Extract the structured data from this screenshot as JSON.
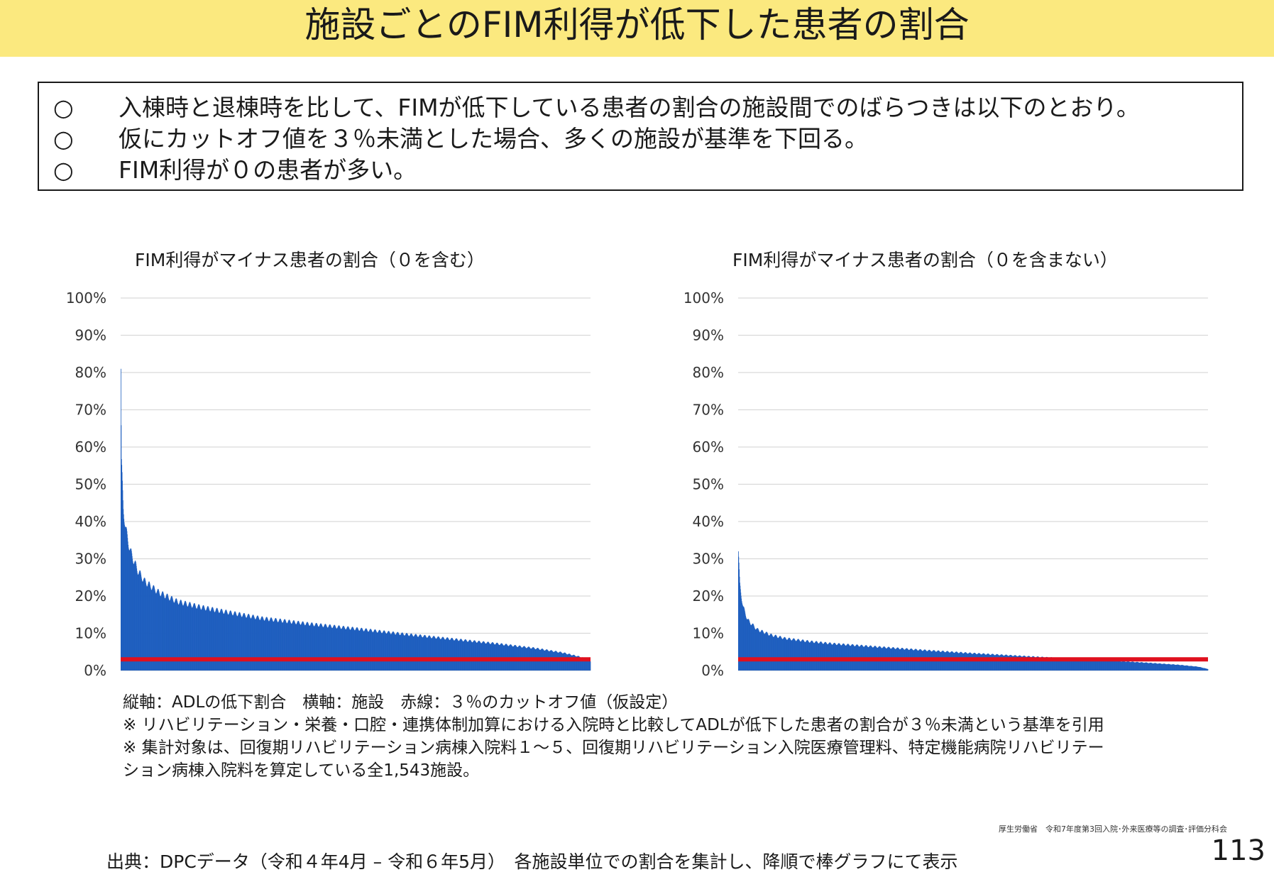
{
  "header": {
    "title": "施設ごとのFIM利得が低下した患者の割合"
  },
  "summary": {
    "bullets": [
      {
        "mark": "○",
        "text": "入棟時と退棟時を比して、FIMが低下している患者の割合の施設間でのばらつきは以下のとおり。"
      },
      {
        "mark": "○",
        "text": "仮にカットオフ値を３％未満とした場合、多くの施設が基準を下回る。"
      },
      {
        "mark": "○",
        "text": "FIM利得が０の患者が多い。"
      }
    ]
  },
  "colors": {
    "bar": "#1f5fbf",
    "cutoff_line": "#e0101e",
    "grid": "#d9d9d9",
    "title_bar": "#fbe97f"
  },
  "chart_data": [
    {
      "type": "bar",
      "title": "FIM利得がマイナス患者の割合（０を含む）",
      "x_count": 1543,
      "y_ticks": [
        "0%",
        "10%",
        "20%",
        "30%",
        "40%",
        "50%",
        "60%",
        "70%",
        "80%",
        "90%",
        "100%"
      ],
      "ylim": [
        0,
        100
      ],
      "cutoff": 3,
      "sorted": "descending",
      "profile": [
        [
          0.0,
          81
        ],
        [
          0.001,
          56
        ],
        [
          0.005,
          44
        ],
        [
          0.01,
          38
        ],
        [
          0.02,
          32
        ],
        [
          0.035,
          27
        ],
        [
          0.05,
          24
        ],
        [
          0.08,
          21
        ],
        [
          0.12,
          18.5
        ],
        [
          0.17,
          17
        ],
        [
          0.22,
          15.8
        ],
        [
          0.3,
          14
        ],
        [
          0.4,
          12.5
        ],
        [
          0.5,
          11.2
        ],
        [
          0.6,
          9.8
        ],
        [
          0.7,
          8.5
        ],
        [
          0.8,
          7.2
        ],
        [
          0.88,
          6.0
        ],
        [
          0.94,
          4.8
        ],
        [
          0.98,
          3.6
        ],
        [
          1.0,
          2.5
        ]
      ]
    },
    {
      "type": "bar",
      "title": "FIM利得がマイナス患者の割合（０を含まない）",
      "x_count": 1543,
      "y_ticks": [
        "0%",
        "10%",
        "20%",
        "30%",
        "40%",
        "50%",
        "60%",
        "70%",
        "80%",
        "90%",
        "100%"
      ],
      "ylim": [
        0,
        100
      ],
      "cutoff": 3,
      "sorted": "descending",
      "profile": [
        [
          0.0,
          32
        ],
        [
          0.003,
          23
        ],
        [
          0.01,
          17
        ],
        [
          0.02,
          13.5
        ],
        [
          0.04,
          11
        ],
        [
          0.07,
          9.5
        ],
        [
          0.1,
          8.6
        ],
        [
          0.15,
          7.8
        ],
        [
          0.2,
          7.2
        ],
        [
          0.3,
          6.3
        ],
        [
          0.4,
          5.4
        ],
        [
          0.5,
          4.6
        ],
        [
          0.6,
          3.9
        ],
        [
          0.7,
          3.2
        ],
        [
          0.8,
          2.6
        ],
        [
          0.88,
          2.0
        ],
        [
          0.94,
          1.5
        ],
        [
          0.98,
          1.0
        ],
        [
          1.0,
          0.4
        ]
      ]
    }
  ],
  "notes": [
    "縦軸：ADLの低下割合　横軸：施設　赤線：３％のカットオフ値（仮設定）",
    "※ リハビリテーション・栄養・口腔・連携体制加算における入院時と比較してADLが低下した患者の割合が３％未満という基準を引用",
    "※ 集計対象は、回復期リハビリテーション病棟入院料１～５、回復期リハビリテーション入院医療管理料、特定機能病院リハビリテー",
    "ション病棟入院料を算定している全1,543施設。"
  ],
  "footer": {
    "org": "厚生労働省　令和7年度第3回入院･外来医療等の調査･評価分科会",
    "page": "113",
    "source": "出典：DPCデータ（令和４年4月 – 令和６年5月）　各施設単位での割合を集計し、降順で棒グラフにて表示"
  }
}
